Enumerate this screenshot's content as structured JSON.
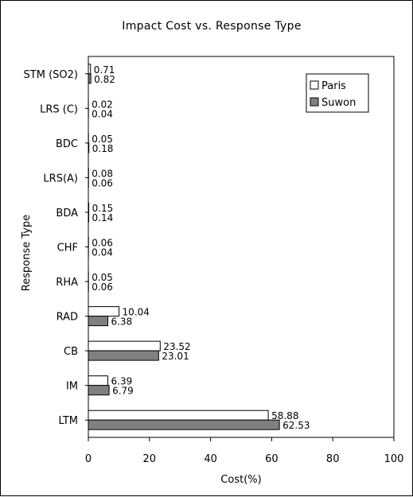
{
  "chart_data": {
    "type": "bar",
    "orientation": "horizontal",
    "title": "Impact Cost vs. Response Type",
    "xlabel": "Cost(%)",
    "ylabel": "Response Type",
    "xlim": [
      0,
      100
    ],
    "xticks": [
      "0",
      "20",
      "40",
      "60",
      "80",
      "100"
    ],
    "categories": [
      "STM (SO2)",
      "LRS (C)",
      "BDC",
      "LRS(A)",
      "BDA",
      "CHF",
      "RHA",
      "RAD",
      "CB",
      "IM",
      "LTM"
    ],
    "series": [
      {
        "name": "Paris",
        "color": "#ffffff",
        "values": [
          0.71,
          0.02,
          0.05,
          0.08,
          0.15,
          0.06,
          0.05,
          10.04,
          23.52,
          6.39,
          58.88
        ],
        "labels": [
          "0.71",
          "0.02",
          "0.05",
          "0.08",
          "0.15",
          "0.06",
          "0.05",
          "10.04",
          "23.52",
          "6.39",
          "58.88"
        ]
      },
      {
        "name": "Suwon",
        "color": "#808080",
        "values": [
          0.82,
          0.04,
          0.18,
          0.06,
          0.14,
          0.04,
          0.06,
          6.38,
          23.01,
          6.79,
          62.53
        ],
        "labels": [
          "0.82",
          "0.04",
          "0.18",
          "0.06",
          "0.14",
          "0.04",
          "0.06",
          "6.38",
          "23.01",
          "6.79",
          "62.53"
        ]
      }
    ],
    "grid": false,
    "legend": "top-right"
  }
}
